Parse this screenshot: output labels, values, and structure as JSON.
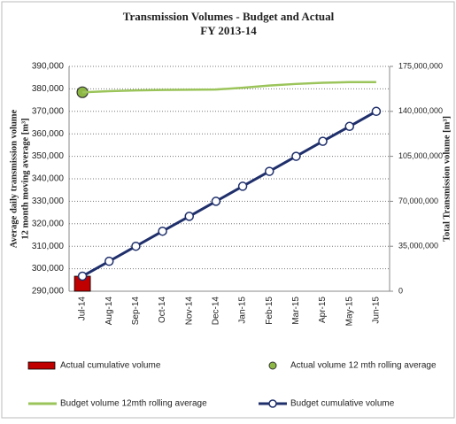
{
  "chart_data": {
    "type": "combo",
    "title": "Transmission Volumes - Budget and Actual",
    "subtitle": "FY 2013-14",
    "ylabel": [
      "Average daily transmission volume",
      "12 month moving average [m³]"
    ],
    "y2label": "Total Transmission volume [m³]",
    "categories": [
      "Jul-14",
      "Aug-14",
      "Sep-14",
      "Oct-14",
      "Nov-14",
      "Dec-14",
      "Jan-15",
      "Feb-15",
      "Mar-15",
      "Apr-15",
      "May-15",
      "Jun-15"
    ],
    "ylim": [
      290000,
      390000
    ],
    "yticks": [
      {
        "value": 290000,
        "label": "290,000"
      },
      {
        "value": 300000,
        "label": "300,000"
      },
      {
        "value": 310000,
        "label": "310,000"
      },
      {
        "value": 320000,
        "label": "320,000"
      },
      {
        "value": 330000,
        "label": "330,000"
      },
      {
        "value": 340000,
        "label": "340,000"
      },
      {
        "value": 350000,
        "label": "350,000"
      },
      {
        "value": 360000,
        "label": "360,000"
      },
      {
        "value": 370000,
        "label": "370,000"
      },
      {
        "value": 380000,
        "label": "380,000"
      },
      {
        "value": 390000,
        "label": "390,000"
      }
    ],
    "y2lim": [
      0,
      175000000
    ],
    "y2ticks": [
      0,
      {
        "value": 35000000,
        "label": "35,000,000"
      },
      {
        "value": 70000000,
        "label": "70,000,000"
      },
      {
        "value": 105000000,
        "label": "105,000,000"
      },
      {
        "value": 140000000,
        "label": "140,000,000"
      },
      {
        "value": 175000000,
        "label": "175,000,000"
      }
    ],
    "grid": true,
    "series": [
      {
        "name": "Actual cumulative volume",
        "type": "bar",
        "axis": "y2",
        "color": "#c00000",
        "values": [
          11700000,
          null,
          null,
          null,
          null,
          null,
          null,
          null,
          null,
          null,
          null,
          null
        ]
      },
      {
        "name": "Actual volume 12 mth rolling average",
        "type": "marker",
        "axis": "y",
        "color": "#8db845",
        "values": [
          378500,
          null,
          null,
          null,
          null,
          null,
          null,
          null,
          null,
          null,
          null,
          null
        ]
      },
      {
        "name": "Budget volume 12mth rolling average",
        "type": "line",
        "axis": "y",
        "color": "#9bc45a",
        "values": [
          378500,
          379000,
          379300,
          379500,
          379600,
          379700,
          380500,
          381500,
          382200,
          382700,
          383000,
          383000
        ]
      },
      {
        "name": "Budget cumulative volume",
        "type": "line-marker",
        "axis": "y2",
        "color": "#1f2f6b",
        "values": [
          11700000,
          23300000,
          35000000,
          46700000,
          58300000,
          70000000,
          81700000,
          93300000,
          105000000,
          116700000,
          128300000,
          140000000
        ]
      }
    ]
  }
}
